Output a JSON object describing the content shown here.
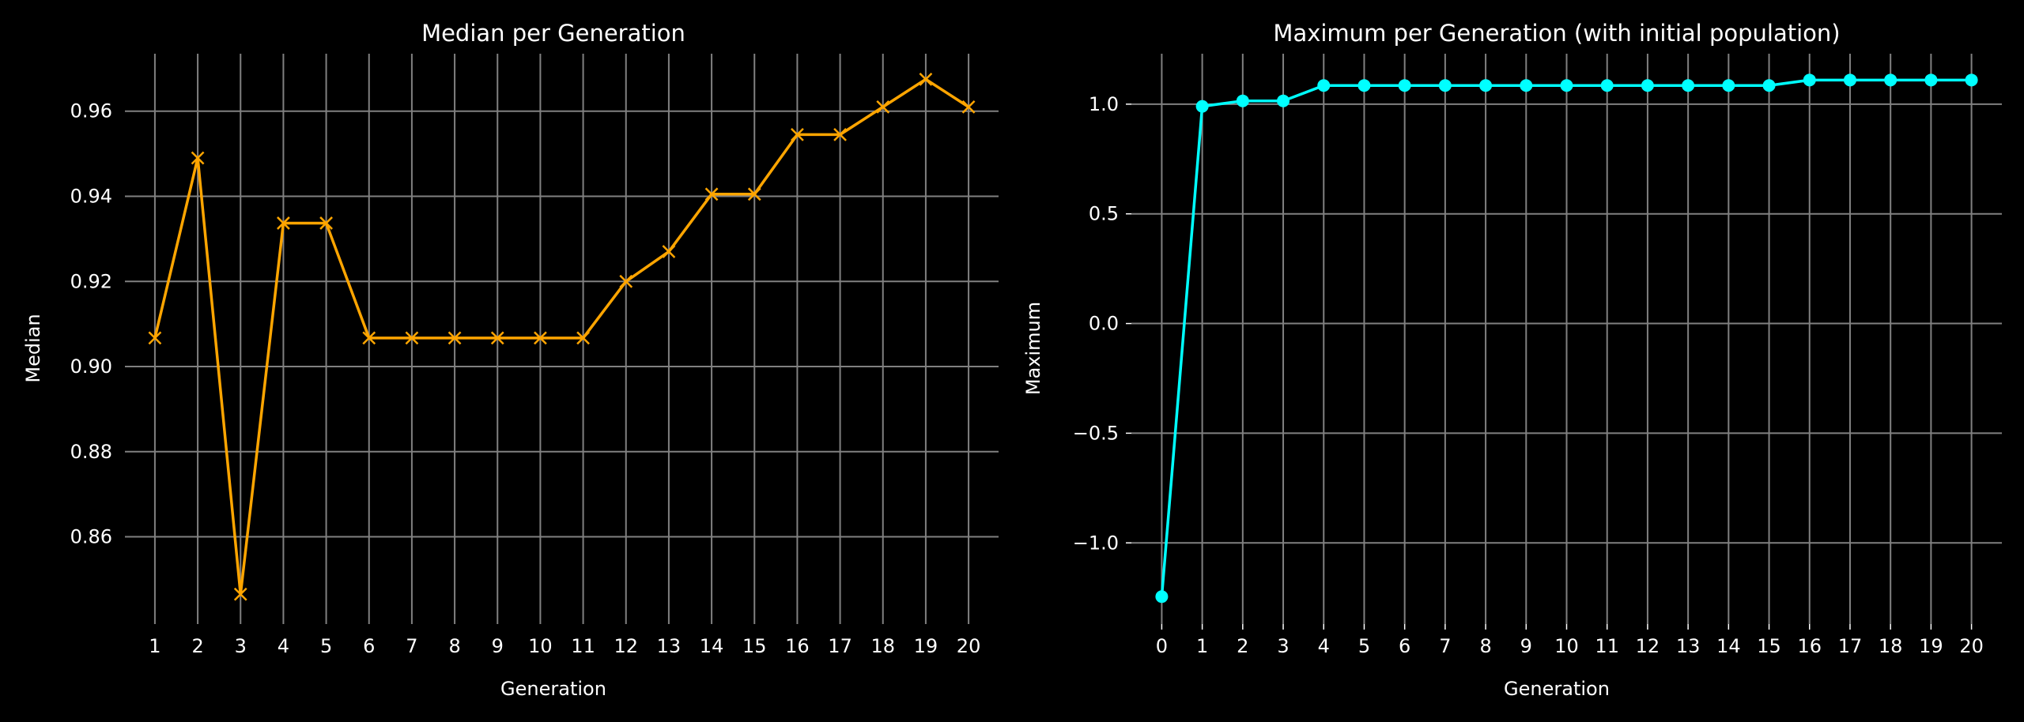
{
  "colors": {
    "background": "#000000",
    "grid": "#808080",
    "text": "#ffffff",
    "median_series": "#ffa500",
    "maximum_series": "#00ffff"
  },
  "chart_data": [
    {
      "type": "line",
      "title": "Median per Generation",
      "xlabel": "Generation",
      "ylabel": "Median",
      "marker": "x",
      "grid": true,
      "legend": false,
      "xlim": [
        0.3,
        20.7
      ],
      "ylim": [
        0.8395,
        0.9735
      ],
      "xticks": [
        1,
        2,
        3,
        4,
        5,
        6,
        7,
        8,
        9,
        10,
        11,
        12,
        13,
        14,
        15,
        16,
        17,
        18,
        19,
        20
      ],
      "xtick_labels": [
        "1",
        "2",
        "3",
        "4",
        "5",
        "6",
        "7",
        "8",
        "9",
        "10",
        "11",
        "12",
        "13",
        "14",
        "15",
        "16",
        "17",
        "18",
        "19",
        "20"
      ],
      "yticks": [
        0.86,
        0.88,
        0.9,
        0.92,
        0.94,
        0.96
      ],
      "ytick_labels": [
        "0.86",
        "0.88",
        "0.90",
        "0.92",
        "0.94",
        "0.96"
      ],
      "series": [
        {
          "x": [
            1,
            2,
            3,
            4,
            5,
            6,
            7,
            8,
            9,
            10,
            11,
            12,
            13,
            14,
            15,
            16,
            17,
            18,
            19,
            20
          ],
          "y": [
            0.9067,
            0.949,
            0.8465,
            0.9337,
            0.9337,
            0.9067,
            0.9067,
            0.9067,
            0.9067,
            0.9067,
            0.9067,
            0.92,
            0.927,
            0.9405,
            0.9405,
            0.9545,
            0.9545,
            0.961,
            0.9675,
            0.961
          ]
        }
      ]
    },
    {
      "type": "line",
      "title": "Maximum per Generation (with initial population)",
      "xlabel": "Generation",
      "ylabel": "Maximum",
      "marker": "o",
      "grid": true,
      "legend": false,
      "xlim": [
        -0.75,
        20.75
      ],
      "ylim": [
        -1.37,
        1.23
      ],
      "xticks": [
        0,
        1,
        2,
        3,
        4,
        5,
        6,
        7,
        8,
        9,
        10,
        11,
        12,
        13,
        14,
        15,
        16,
        17,
        18,
        19,
        20
      ],
      "xtick_labels": [
        "0",
        "1",
        "2",
        "3",
        "4",
        "5",
        "6",
        "7",
        "8",
        "9",
        "10",
        "11",
        "12",
        "13",
        "14",
        "15",
        "16",
        "17",
        "18",
        "19",
        "20"
      ],
      "yticks": [
        -1.0,
        -0.5,
        0.0,
        0.5,
        1.0
      ],
      "ytick_labels": [
        "−1.0",
        "−0.5",
        "0.0",
        "0.5",
        "1.0"
      ],
      "series": [
        {
          "x": [
            0,
            1,
            2,
            3,
            4,
            5,
            6,
            7,
            8,
            9,
            10,
            11,
            12,
            13,
            14,
            15,
            16,
            17,
            18,
            19,
            20
          ],
          "y": [
            -1.245,
            0.99,
            1.015,
            1.015,
            1.085,
            1.085,
            1.085,
            1.085,
            1.085,
            1.085,
            1.085,
            1.085,
            1.085,
            1.085,
            1.085,
            1.085,
            1.11,
            1.11,
            1.11,
            1.11,
            1.11
          ]
        }
      ]
    }
  ]
}
